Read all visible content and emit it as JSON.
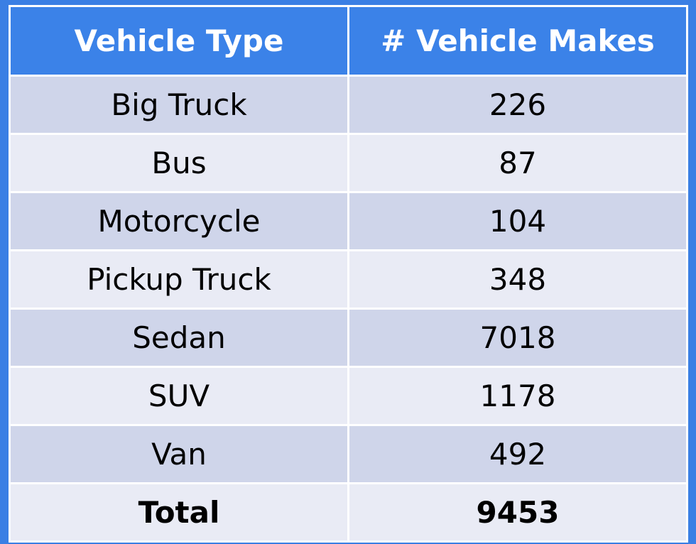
{
  "chart_data": {
    "type": "table",
    "columns": [
      "Vehicle Type",
      "# Vehicle Makes"
    ],
    "rows": [
      {
        "type": "Big Truck",
        "makes": "226"
      },
      {
        "type": "Bus",
        "makes": "87"
      },
      {
        "type": "Motorcycle",
        "makes": "104"
      },
      {
        "type": "Pickup Truck",
        "makes": "348"
      },
      {
        "type": "Sedan",
        "makes": "7018"
      },
      {
        "type": "SUV",
        "makes": "1178"
      },
      {
        "type": "Van",
        "makes": "492"
      }
    ],
    "total": {
      "label": "Total",
      "value": "9453"
    }
  },
  "colors": {
    "background": "#3a7fe4",
    "header": "#3b82e8",
    "row_dark": "#cfd5ea",
    "row_light": "#e9ebf5",
    "border": "#ffffff"
  }
}
